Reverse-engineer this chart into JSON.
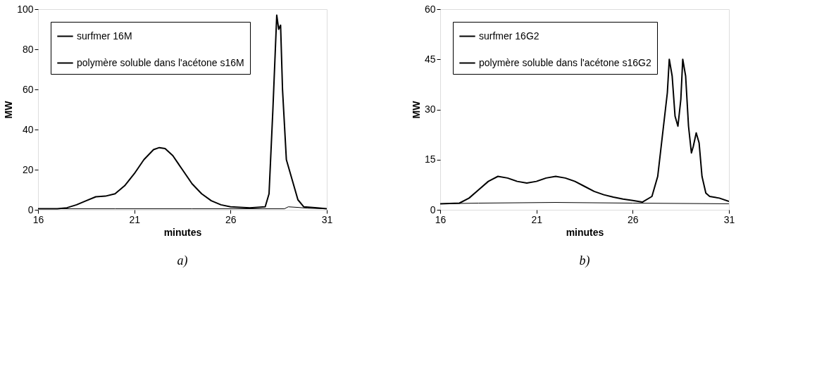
{
  "chart_data": [
    {
      "type": "line",
      "xlabel": "minutes",
      "ylabel": "MW",
      "xlim": [
        16,
        31
      ],
      "xticks": [
        16,
        21,
        26,
        31
      ],
      "ylim": [
        0,
        100
      ],
      "yticks": [
        0,
        20,
        40,
        60,
        80,
        100
      ],
      "grid": false,
      "legend": "top left",
      "annotations": [
        "a)"
      ],
      "series": [
        {
          "name": "surfmer 16M",
          "color": "#000000",
          "x": [
            16,
            17,
            17.5,
            18,
            18.5,
            19,
            19.5,
            20,
            20.5,
            21,
            21.5,
            22,
            22.3,
            22.6,
            23,
            23.5,
            24,
            24.5,
            25,
            25.5,
            26,
            27,
            27.8,
            28,
            28.2,
            28.4,
            28.5,
            28.6,
            28.7,
            28.9,
            29.2,
            29.5,
            29.8,
            30.5,
            31
          ],
          "values": [
            0.5,
            0.5,
            1,
            2.5,
            4.5,
            6.5,
            6.8,
            8,
            12,
            18,
            25,
            30,
            31,
            30.5,
            27,
            20,
            13,
            8,
            4.5,
            2.5,
            1.5,
            1,
            1.5,
            8,
            50,
            97,
            90,
            92,
            60,
            25,
            15,
            5,
            1.5,
            1,
            0.5
          ]
        },
        {
          "name": "polymère soluble dans l'acétone s16M",
          "color": "#000000",
          "x": [
            16,
            20,
            24,
            28.8,
            29,
            29.5,
            30,
            31
          ],
          "values": [
            0.5,
            0.5,
            0.5,
            0.5,
            1.5,
            1.2,
            0.8,
            0.5
          ]
        }
      ]
    },
    {
      "type": "line",
      "xlabel": "minutes",
      "ylabel": "MW",
      "xlim": [
        16,
        31
      ],
      "xticks": [
        16,
        21,
        26,
        31
      ],
      "ylim": [
        0,
        60
      ],
      "yticks": [
        0,
        15,
        30,
        45,
        60
      ],
      "grid": false,
      "legend": "top left",
      "annotations": [
        "b)"
      ],
      "series": [
        {
          "name": "surfmer 16G2",
          "color": "#000000",
          "x": [
            16,
            17,
            17.5,
            18,
            18.5,
            19,
            19.5,
            20,
            20.5,
            21,
            21.5,
            22,
            22.5,
            23,
            23.5,
            24,
            24.5,
            25,
            25.5,
            26,
            26.5,
            27,
            27.3,
            27.6,
            27.8,
            27.9,
            28.05,
            28.2,
            28.35,
            28.5,
            28.6,
            28.75,
            28.9,
            29.05,
            29.15,
            29.3,
            29.45,
            29.6,
            29.8,
            30,
            30.5,
            31
          ],
          "values": [
            1.8,
            2,
            3.5,
            6,
            8.5,
            10,
            9.5,
            8.5,
            8,
            8.5,
            9.5,
            10,
            9.5,
            8.5,
            7,
            5.5,
            4.5,
            3.8,
            3.2,
            2.8,
            2.3,
            4,
            10,
            25,
            35,
            45,
            40,
            28,
            25,
            33,
            45,
            40,
            25,
            17,
            19,
            23,
            20,
            10,
            5,
            4,
            3.5,
            2.5
          ]
        },
        {
          "name": "polymère soluble dans l'acétone s16G2",
          "color": "#000000",
          "x": [
            16,
            18,
            22,
            26,
            31
          ],
          "values": [
            1.8,
            2,
            2.2,
            2,
            1.8
          ]
        }
      ]
    }
  ]
}
